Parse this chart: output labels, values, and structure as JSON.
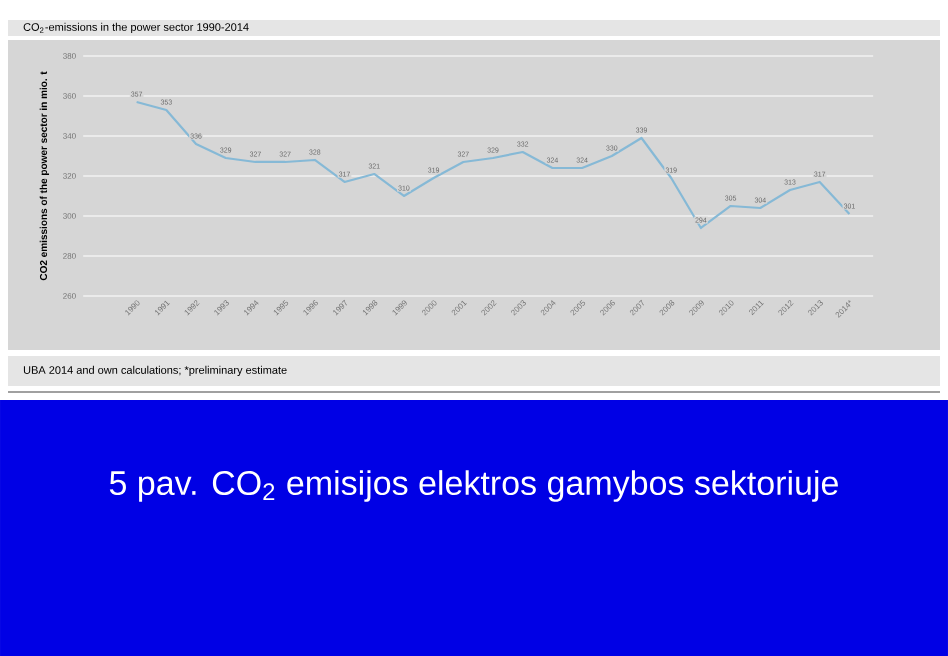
{
  "chart_data": {
    "type": "line",
    "title": "CO$_{2}$-emissions in the power sector 1990-2014",
    "ylabel": "CO2 emissions of the power sector in mio. t",
    "categories": [
      "1990",
      "1991",
      "1992",
      "1993",
      "1994",
      "1995",
      "1996",
      "1997",
      "1998",
      "1999",
      "2000",
      "2001",
      "2002",
      "2003",
      "2004",
      "2005",
      "2006",
      "2007",
      "2008",
      "2009",
      "2010",
      "2011",
      "2012",
      "2013",
      "2014*"
    ],
    "values": [
      357,
      353,
      336,
      329,
      327,
      327,
      328,
      317,
      321,
      310,
      319,
      327,
      329,
      332,
      324,
      324,
      330,
      339,
      319,
      294,
      305,
      304,
      313,
      317,
      301
    ],
    "color": "#86b9d6",
    "line_style": "solid",
    "ylim": [
      260,
      380
    ],
    "yticks": [
      260,
      280,
      300,
      320,
      340,
      360,
      380
    ],
    "grid": "y",
    "data_labels": true,
    "annotations": [
      "UBA 2014 and own calculations; *preliminary estimate",
      "5 pav. CO$_{2}$ emisijos elektros gamybos sektoriuje"
    ]
  }
}
